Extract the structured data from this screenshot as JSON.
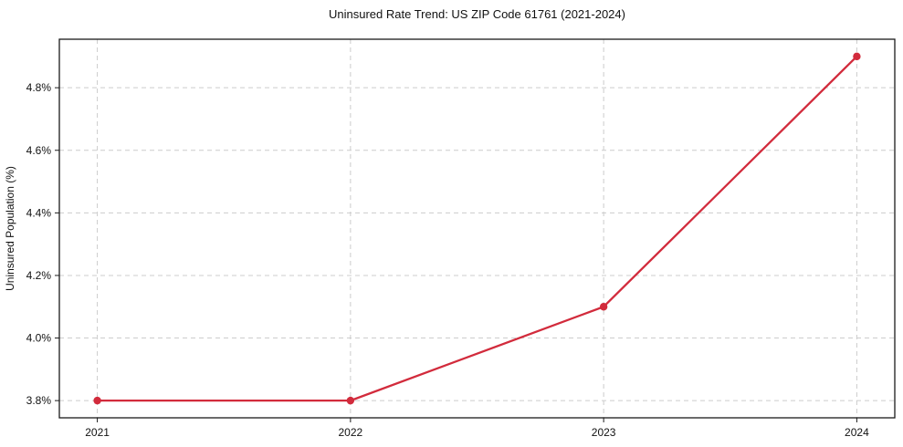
{
  "chart_data": {
    "type": "line",
    "title": "Uninsured Rate Trend: US ZIP Code 61761 (2021-2024)",
    "xlabel": "",
    "ylabel": "Uninsured Population (%)",
    "x": [
      2021,
      2022,
      2023,
      2024
    ],
    "values": [
      3.8,
      3.8,
      4.1,
      4.9
    ],
    "x_tick_labels": [
      "2021",
      "2022",
      "2023",
      "2024"
    ],
    "y_tick_values": [
      3.8,
      4.0,
      4.2,
      4.4,
      4.6,
      4.8
    ],
    "y_tick_labels": [
      "3.8%",
      "4.0%",
      "4.2%",
      "4.4%",
      "4.6%",
      "4.8%"
    ],
    "xlim": [
      2020.85,
      2024.15
    ],
    "ylim": [
      3.745,
      4.955
    ],
    "grid": true,
    "grid_style": "dashed",
    "legend_position": "none",
    "line_color": "#d22b3c",
    "marker": "circle",
    "grid_color": "#cccccc",
    "frame_color": "#1a1a1a",
    "text_color": "#111111",
    "background_color": "#ffffff"
  }
}
